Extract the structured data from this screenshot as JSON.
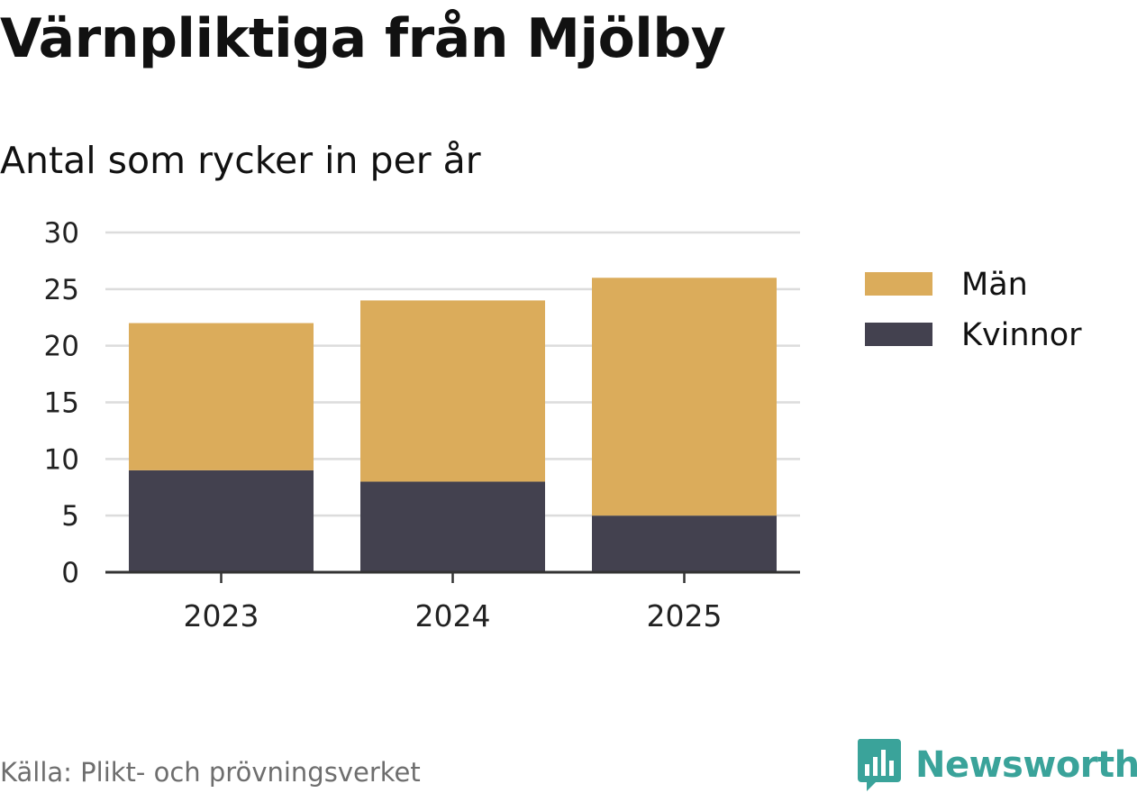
{
  "title": "Värnpliktiga från Mjölby",
  "subtitle": "Antal som rycker in per år",
  "source": "Källa: Plikt- och prövningsverket",
  "brand": {
    "name": "Newsworthy",
    "icon": "bar-chart-speech-icon",
    "color": "#3aa39a"
  },
  "chart_data": {
    "type": "bar",
    "stacked": true,
    "categories": [
      "2023",
      "2024",
      "2025"
    ],
    "series": [
      {
        "name": "Kvinnor",
        "values": [
          9,
          8,
          5
        ],
        "color": "#43414f"
      },
      {
        "name": "Män",
        "values": [
          13,
          16,
          21
        ],
        "color": "#dbac5b"
      }
    ],
    "legend_order": [
      "Män",
      "Kvinnor"
    ],
    "legend_position": "right",
    "ylim": [
      0,
      30
    ],
    "yticks": [
      0,
      5,
      10,
      15,
      20,
      25,
      30
    ],
    "grid": true,
    "xlabel": "",
    "ylabel": ""
  }
}
